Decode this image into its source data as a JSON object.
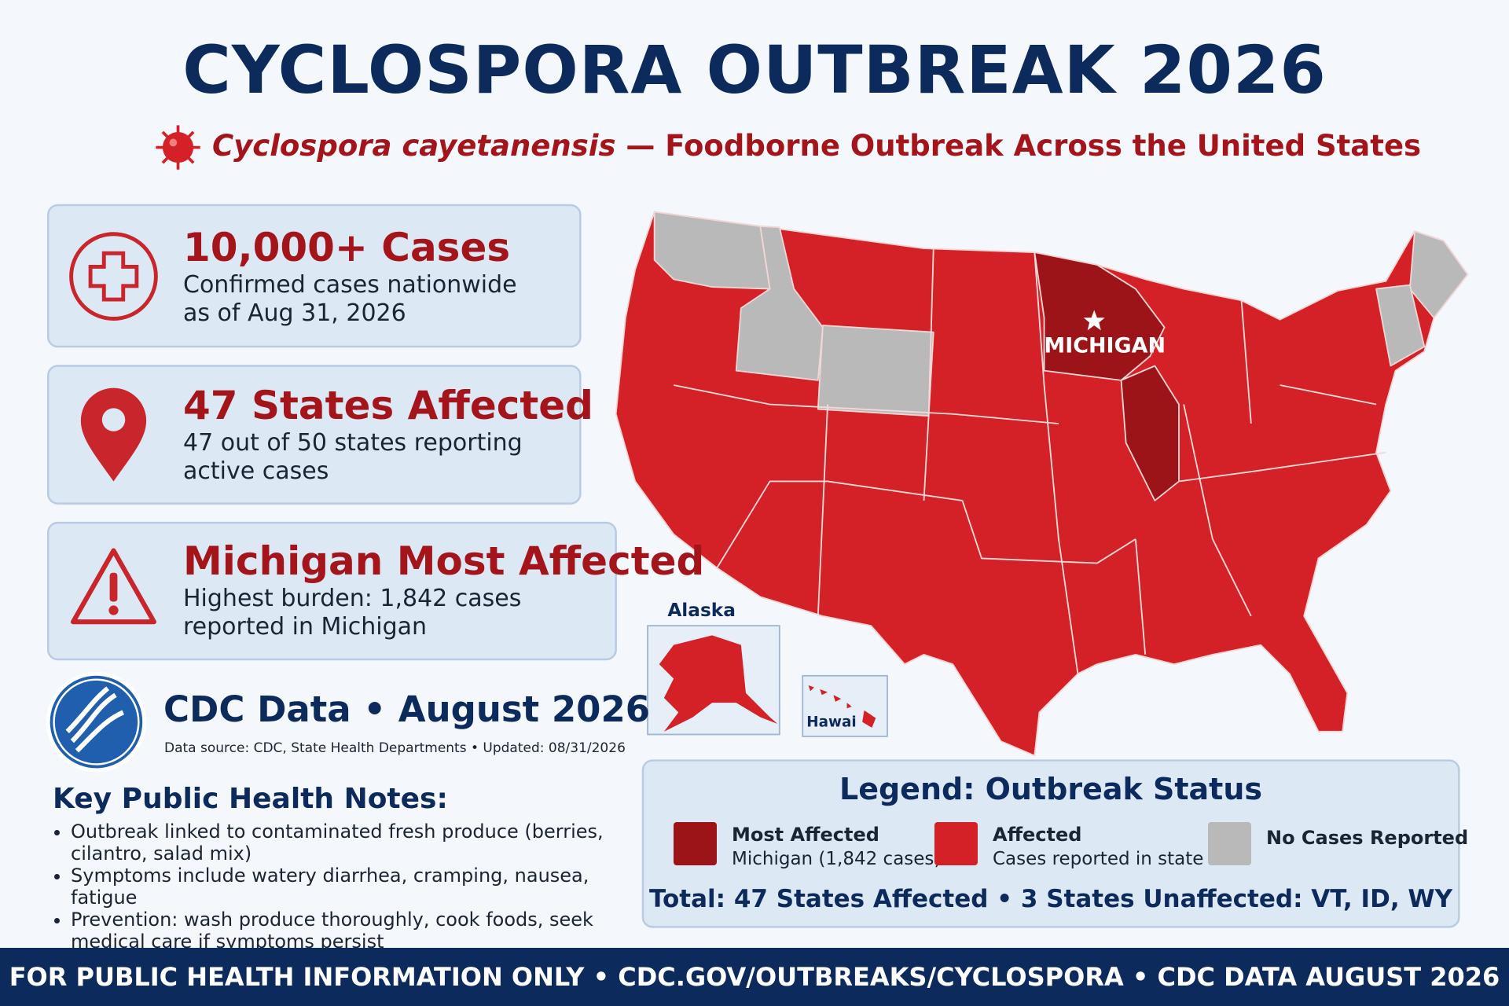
{
  "header": {
    "title": "CYCLOSPORA OUTBREAK 2026",
    "subtitle_italic": "Cyclospora cayetanensis",
    "subtitle_rest": "— Foodborne Outbreak Across the United States"
  },
  "stats": [
    {
      "headline": "10,000+ Cases",
      "lines": [
        "Confirmed cases nationwide",
        "as of Aug 31, 2026"
      ]
    },
    {
      "headline": "47 States Affected",
      "lines": [
        "47 out of 50 states reporting",
        "active cases"
      ]
    },
    {
      "headline": "Michigan Most Affected",
      "lines": [
        "Highest burden: 1,842 cases",
        "reported in Michigan"
      ]
    }
  ],
  "source": {
    "title": "CDC Data • August 2026",
    "note": "Data source: CDC, State Health Departments • Updated: 08/31/2026"
  },
  "notes": {
    "title": "Key Public Health Notes:",
    "items": [
      "Outbreak linked to contaminated fresh produce (berries, cilantro, salad mix)",
      "Symptoms include watery diarrhea, cramping, nausea, fatigue",
      "Prevention: wash produce thoroughly, cook foods, seek medical care if symptoms persist"
    ]
  },
  "map": {
    "highlight_label": "MICHIGAN",
    "alaska_label": "Alaska",
    "hawaii_label": "Hawai"
  },
  "legend": {
    "title": "Legend: Outbreak Status",
    "items": [
      {
        "label": "Most Affected",
        "detail": "Michigan (1,842 cases)",
        "color": "#9c1318"
      },
      {
        "label": "Affected",
        "detail": "Cases reported in state",
        "color": "#d42027"
      },
      {
        "label": "No Cases Reported",
        "color": "#b9b9b9"
      }
    ],
    "summary": "Total: 47 States Affected • 3 States Unaffected: VT, ID, WY"
  },
  "footer": "FOR PUBLIC HEALTH INFORMATION ONLY • CDC.GOV/OUTBREAKS/CYCLOSPORA • CDC DATA AUGUST 2026"
}
